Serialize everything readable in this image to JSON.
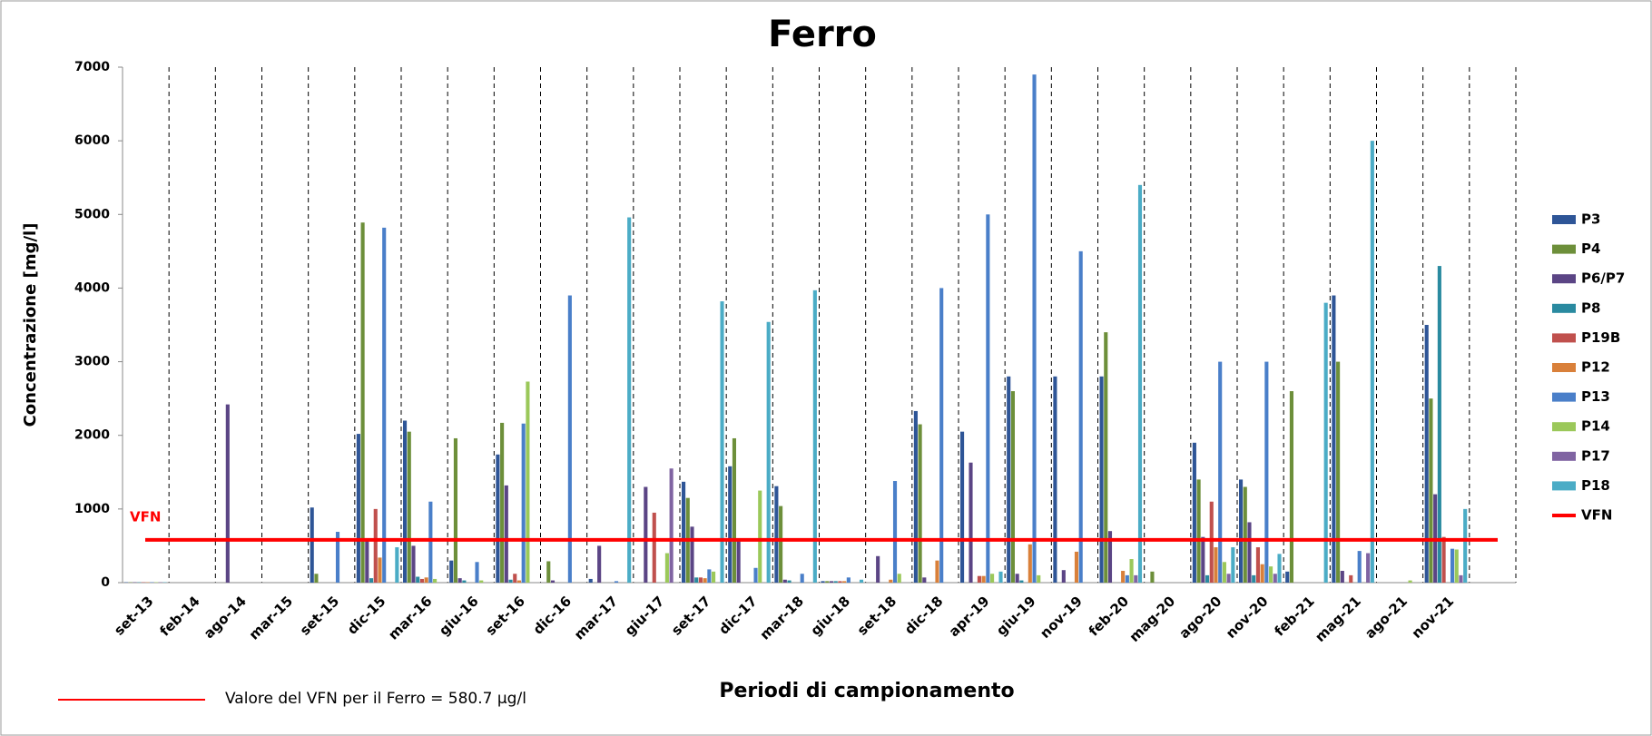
{
  "chart_data": {
    "type": "bar",
    "title": "Ferro",
    "xlabel": "Periodi di campionamento",
    "ylabel": "Concentrazione [mg/l]",
    "categories": [
      "set-13",
      "feb-14",
      "ago-14",
      "mar-15",
      "set-15",
      "dic-15",
      "mar-16",
      "giu-16",
      "set-16",
      "dic-16",
      "mar-17",
      "giu-17",
      "set-17",
      "dic-17",
      "mar-18",
      "giu-18",
      "set-18",
      "dic-18",
      "apr-19",
      "giu-19",
      "nov-19",
      "feb-20",
      "mag-20",
      "ago-20",
      "nov-20",
      "feb-21",
      "mag-21",
      "ago-21",
      "nov-21",
      null
    ],
    "series": [
      {
        "name": "P3",
        "color": "#2e5597",
        "values": [
          5,
          0,
          0,
          0,
          1020,
          2020,
          2200,
          300,
          1740,
          0,
          50,
          0,
          1370,
          1580,
          1310,
          20,
          0,
          2330,
          2050,
          2800,
          2800,
          2800,
          0,
          1900,
          1400,
          150,
          3900,
          0,
          3500,
          0
        ]
      },
      {
        "name": "P4",
        "color": "#6d8f3a",
        "values": [
          5,
          0,
          0,
          0,
          120,
          4890,
          2050,
          1960,
          2170,
          290,
          0,
          0,
          1150,
          1960,
          1040,
          20,
          0,
          2150,
          0,
          2600,
          0,
          3400,
          150,
          1400,
          1300,
          2600,
          3000,
          0,
          2500,
          0
        ]
      },
      {
        "name": "P6/P7",
        "color": "#5b4585",
        "values": [
          5,
          0,
          2420,
          0,
          0,
          600,
          500,
          60,
          1320,
          30,
          500,
          1300,
          760,
          560,
          40,
          20,
          360,
          70,
          1630,
          120,
          170,
          700,
          0,
          620,
          820,
          0,
          160,
          0,
          1200,
          0
        ]
      },
      {
        "name": "P8",
        "color": "#2a8aa0",
        "values": [
          5,
          0,
          0,
          0,
          0,
          60,
          80,
          30,
          40,
          0,
          0,
          0,
          70,
          0,
          30,
          20,
          0,
          0,
          0,
          30,
          0,
          0,
          0,
          100,
          100,
          0,
          0,
          0,
          4300,
          0
        ]
      },
      {
        "name": "P19B",
        "color": "#c0504d",
        "values": [
          5,
          0,
          0,
          0,
          0,
          1000,
          50,
          0,
          120,
          0,
          0,
          950,
          70,
          0,
          0,
          20,
          0,
          0,
          90,
          0,
          0,
          0,
          0,
          1100,
          480,
          0,
          100,
          0,
          620,
          0
        ]
      },
      {
        "name": "P12",
        "color": "#d9803a",
        "values": [
          5,
          0,
          0,
          0,
          0,
          340,
          70,
          0,
          30,
          0,
          0,
          0,
          60,
          0,
          0,
          20,
          40,
          300,
          90,
          520,
          420,
          160,
          0,
          480,
          250,
          0,
          0,
          0,
          0,
          0
        ]
      },
      {
        "name": "P13",
        "color": "#4a7fc9",
        "values": [
          5,
          0,
          0,
          0,
          690,
          4820,
          1100,
          280,
          2160,
          3900,
          20,
          0,
          180,
          200,
          120,
          70,
          1380,
          4000,
          5000,
          6900,
          4500,
          100,
          0,
          3000,
          3000,
          0,
          430,
          0,
          460,
          0
        ]
      },
      {
        "name": "P14",
        "color": "#9bc85a",
        "values": [
          5,
          0,
          0,
          0,
          0,
          0,
          50,
          30,
          2730,
          0,
          0,
          400,
          150,
          1250,
          0,
          0,
          120,
          0,
          120,
          100,
          0,
          320,
          0,
          280,
          220,
          0,
          0,
          30,
          450,
          0
        ]
      },
      {
        "name": "P17",
        "color": "#8064a2",
        "values": [
          5,
          0,
          0,
          0,
          0,
          0,
          0,
          0,
          0,
          0,
          0,
          1550,
          0,
          0,
          0,
          0,
          0,
          0,
          0,
          0,
          0,
          100,
          0,
          120,
          120,
          0,
          400,
          0,
          100,
          0
        ]
      },
      {
        "name": "P18",
        "color": "#4bacc6",
        "values": [
          5,
          0,
          0,
          0,
          0,
          480,
          0,
          0,
          0,
          0,
          4960,
          0,
          3820,
          3540,
          3970,
          40,
          0,
          0,
          150,
          0,
          0,
          5400,
          0,
          480,
          390,
          3800,
          6000,
          0,
          1000,
          0
        ]
      }
    ],
    "reference_line": {
      "name": "VFN",
      "value": 580.7,
      "color": "#ff0000"
    },
    "note": "Valore del VFN per il Ferro = 580.7 µg/l",
    "ylim": [
      0,
      7000
    ],
    "yticks": [
      0,
      1000,
      2000,
      3000,
      4000,
      5000,
      6000,
      7000
    ],
    "legend": "right"
  }
}
